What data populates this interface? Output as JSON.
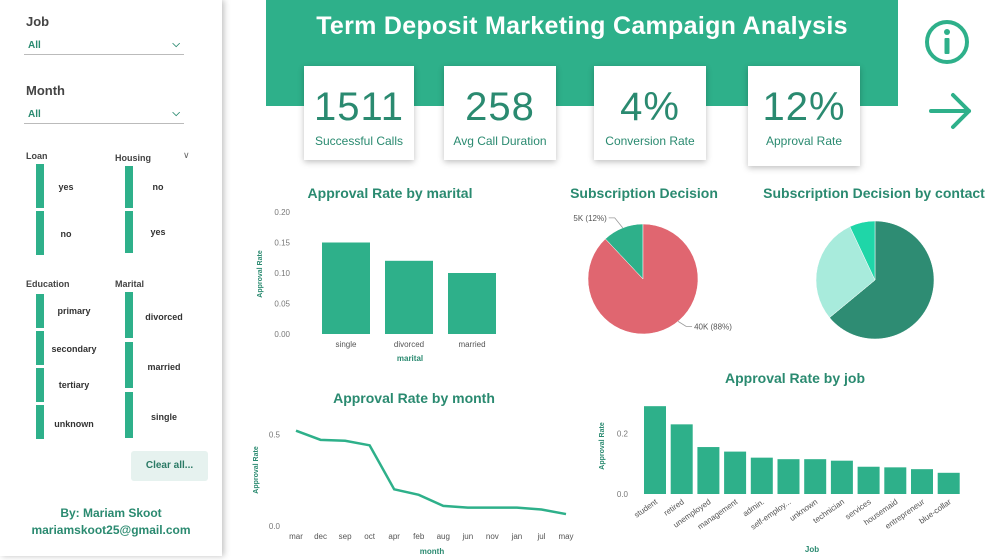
{
  "sidebar": {
    "job_label": "Job",
    "job_value": "All",
    "month_label": "Month",
    "month_value": "All",
    "loan_label": "Loan",
    "loan_items": [
      "yes",
      "no"
    ],
    "housing_label": "Housing",
    "housing_items": [
      "no",
      "yes"
    ],
    "education_label": "Education",
    "education_items": [
      "primary",
      "secondary",
      "tertiary",
      "unknown"
    ],
    "marital_label": "Marital",
    "marital_items": [
      "divorced",
      "married",
      "single"
    ],
    "clear_label": "Clear all...",
    "author": "By: Mariam Skoot",
    "email": "mariamskoot25@gmail.com"
  },
  "header": {
    "title": "Term Deposit Marketing Campaign Analysis",
    "info_icon": "info-icon",
    "next_icon": "arrow-right-icon"
  },
  "kpis": [
    {
      "value": "1511",
      "label": "Successful Calls"
    },
    {
      "value": "258",
      "label": "Avg Call Duration"
    },
    {
      "value": "4%",
      "label": "Conversion Rate"
    },
    {
      "value": "12%",
      "label": "Approval Rate"
    }
  ],
  "colors": {
    "accent": "#2eb08a",
    "accent_dark": "#2a8a70",
    "pie_red": "#e06670",
    "pie_light": "#a8ebdc",
    "pie_bright": "#1fd6a8",
    "pie_dark": "#2e8c73"
  },
  "chart_data": [
    {
      "id": "marital",
      "type": "bar",
      "title": "Approval Rate by marital",
      "categories": [
        "single",
        "divorced",
        "married"
      ],
      "values": [
        0.15,
        0.12,
        0.1
      ],
      "xlabel": "marital",
      "ylabel": "Approval Rate",
      "ylim": [
        0,
        0.2
      ],
      "yticks": [
        "0.00",
        "0.05",
        "0.10",
        "0.15",
        "0.20"
      ]
    },
    {
      "id": "subscription",
      "type": "pie",
      "title": "Subscription Decision",
      "slices": [
        {
          "label": "5K (12%)",
          "value": 12
        },
        {
          "label": "40K (88%)",
          "value": 88
        }
      ]
    },
    {
      "id": "contact",
      "type": "pie",
      "title": "Subscription Decision by contact",
      "slices": [
        {
          "label": "",
          "value": 64
        },
        {
          "label": "",
          "value": 29
        },
        {
          "label": "",
          "value": 7
        }
      ]
    },
    {
      "id": "month",
      "type": "line",
      "title": "Approval Rate by month",
      "categories": [
        "mar",
        "dec",
        "sep",
        "oct",
        "apr",
        "feb",
        "aug",
        "jun",
        "nov",
        "jan",
        "jul",
        "may"
      ],
      "values": [
        0.52,
        0.47,
        0.465,
        0.44,
        0.2,
        0.17,
        0.11,
        0.1,
        0.1,
        0.1,
        0.09,
        0.065
      ],
      "xlabel": "month",
      "ylabel": "Approval Rate",
      "ylim": [
        0,
        0.6
      ],
      "yticks": [
        "0.0",
        "0.5"
      ]
    },
    {
      "id": "job",
      "type": "bar",
      "title": "Approval Rate by job",
      "categories": [
        "student",
        "retired",
        "unemployed",
        "management",
        "admin.",
        "self-employ...",
        "unknown",
        "technician",
        "services",
        "housemaid",
        "entrepreneur",
        "blue-collar"
      ],
      "values": [
        0.29,
        0.23,
        0.155,
        0.14,
        0.12,
        0.115,
        0.115,
        0.11,
        0.09,
        0.088,
        0.082,
        0.07
      ],
      "xlabel": "Job",
      "ylabel": "Approval Rate",
      "ylim": [
        0,
        0.35
      ],
      "yticks": [
        "0.0",
        "0.2"
      ]
    }
  ]
}
